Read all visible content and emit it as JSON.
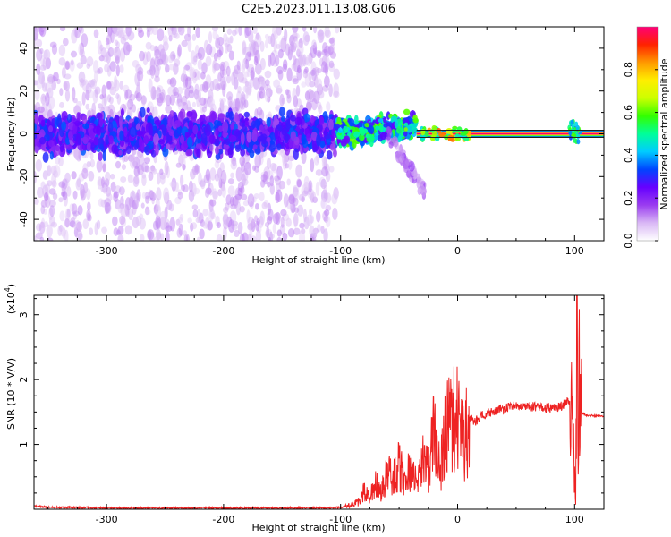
{
  "chart_data": [
    {
      "type": "heatmap",
      "title": "C2E5.2023.011.13.08.G06",
      "xlabel": "Height of straight line (km)",
      "ylabel": "Frequency (Hz)",
      "xlim": [
        -362,
        125
      ],
      "ylim": [
        -50,
        50
      ],
      "x_ticks": [
        -300,
        -200,
        -100,
        0,
        100
      ],
      "y_ticks": [
        -40,
        -20,
        0,
        20,
        40
      ],
      "colorbar": {
        "label": "Normalized spectral amplitude",
        "range": [
          0,
          1
        ],
        "ticks": [
          0.0,
          0.2,
          0.4,
          0.6,
          0.8
        ],
        "colors": [
          "#ffffff",
          "#d9b8f5",
          "#9a3cf0",
          "#6600ff",
          "#0044ff",
          "#00ccff",
          "#00ff99",
          "#33ff00",
          "#ccff00",
          "#ffee00",
          "#ff9900",
          "#ff2200",
          "#ff0077"
        ]
      },
      "description_of_data": [
        {
          "x_range": [
            -362,
            -103
          ],
          "core_frequency_hz": [
            -10,
            10
          ],
          "core_amplitude": 0.25,
          "scatter_frequency_hz": [
            -50,
            50
          ],
          "scatter_amplitude": 0.05
        },
        {
          "x_range": [
            -103,
            -35
          ],
          "core_frequency_hz": [
            -8,
            12
          ],
          "core_amplitude": 0.45,
          "tail": {
            "x_range": [
              -60,
              -28
            ],
            "frequency_hz": [
              -30,
              0
            ]
          }
        },
        {
          "x_range": [
            -35,
            125
          ],
          "line_frequency_hz": 0,
          "line_width_hz": 3,
          "line_amplitude": 1.0
        },
        {
          "x_range": [
            95,
            105
          ],
          "burst_frequency_hz": [
            -4,
            6
          ],
          "burst_amplitude": 0.5
        }
      ]
    },
    {
      "type": "line",
      "title": "",
      "xlabel": "Height of straight line (km)",
      "ylabel": "SNR (10 * V/V)",
      "y_multiplier": "(x10^4)",
      "xlim": [
        -362,
        125
      ],
      "ylim": [
        0,
        3.3
      ],
      "x_ticks": [
        -300,
        -200,
        -100,
        0,
        100
      ],
      "y_ticks": [
        1,
        2,
        3
      ],
      "series": [
        {
          "color": "#ee2222",
          "x": [
            -362,
            -350,
            -300,
            -250,
            -200,
            -150,
            -110,
            -100,
            -90,
            -85,
            -80,
            -75,
            -70,
            -65,
            -60,
            -55,
            -50,
            -45,
            -40,
            -35,
            -30,
            -25,
            -20,
            -15,
            -10,
            -5,
            0,
            5,
            10,
            15,
            20,
            30,
            40,
            50,
            60,
            70,
            80,
            90,
            95,
            98,
            100,
            101,
            102,
            103,
            104,
            105,
            110,
            125
          ],
          "y": [
            0.05,
            0.03,
            0.02,
            0.02,
            0.02,
            0.02,
            0.02,
            0.03,
            0.08,
            0.12,
            0.3,
            0.2,
            0.45,
            0.3,
            0.6,
            0.55,
            0.75,
            0.5,
            0.7,
            0.4,
            0.85,
            0.7,
            1.3,
            0.6,
            1.45,
            1.5,
            1.55,
            1.15,
            1.45,
            1.35,
            1.45,
            1.5,
            1.55,
            1.6,
            1.58,
            1.58,
            1.55,
            1.6,
            1.7,
            1.55,
            0.5,
            0.05,
            3.3,
            1.0,
            2.1,
            1.5,
            1.45,
            1.43
          ]
        }
      ]
    }
  ]
}
